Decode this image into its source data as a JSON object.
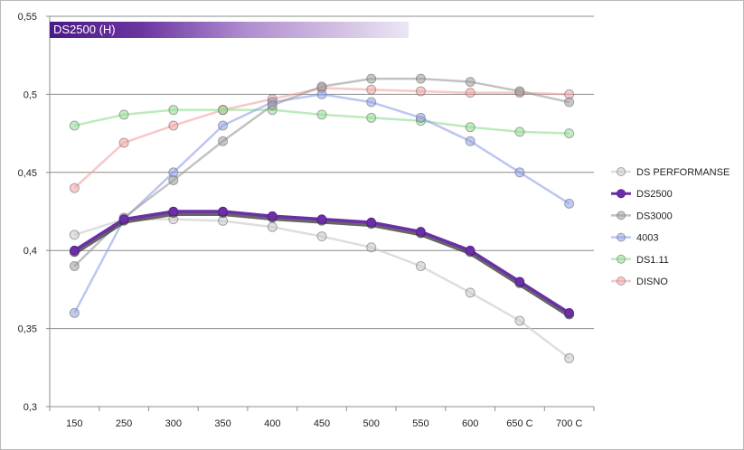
{
  "chart_data": {
    "type": "line",
    "title": "DS2500 (H)",
    "categories": [
      "150",
      "250",
      "300",
      "350",
      "400",
      "450",
      "500",
      "550",
      "600",
      "650 C",
      "700 C"
    ],
    "ylim": [
      0.3,
      0.55
    ],
    "yticks": [
      "0,3",
      "0,35",
      "0,4",
      "0,45",
      "0,5",
      "0,55"
    ],
    "ytick_values": [
      0.3,
      0.35,
      0.4,
      0.45,
      0.5,
      0.55
    ],
    "grid": true,
    "legend": "right",
    "series": [
      {
        "name": "DS PERFORMANSE",
        "color": "#c8c8c8",
        "values": [
          0.41,
          0.42,
          0.42,
          0.419,
          0.415,
          0.409,
          0.402,
          0.39,
          0.373,
          0.355,
          0.331
        ]
      },
      {
        "name": "DS2500",
        "color": "#6b2fa8",
        "values": [
          0.4,
          0.42,
          0.425,
          0.425,
          0.422,
          0.42,
          0.418,
          0.412,
          0.4,
          0.38,
          0.36
        ]
      },
      {
        "name": "DS3000",
        "color": "#9a9a9a",
        "values": [
          0.39,
          0.421,
          0.445,
          0.47,
          0.493,
          0.505,
          0.51,
          0.51,
          0.508,
          0.502,
          0.495
        ]
      },
      {
        "name": "4003",
        "color": "#8fa0e8",
        "values": [
          0.36,
          0.42,
          0.45,
          0.48,
          0.495,
          0.5,
          0.495,
          0.485,
          0.47,
          0.45,
          0.43
        ]
      },
      {
        "name": "DS1.11",
        "color": "#8fdc8f",
        "values": [
          0.48,
          0.487,
          0.49,
          0.49,
          0.49,
          0.487,
          0.485,
          0.483,
          0.479,
          0.476,
          0.475
        ]
      },
      {
        "name": "DISNO",
        "color": "#f4a2a2",
        "values": [
          0.44,
          0.469,
          0.48,
          0.49,
          0.497,
          0.504,
          0.503,
          0.502,
          0.501,
          0.501,
          0.5
        ]
      }
    ]
  }
}
